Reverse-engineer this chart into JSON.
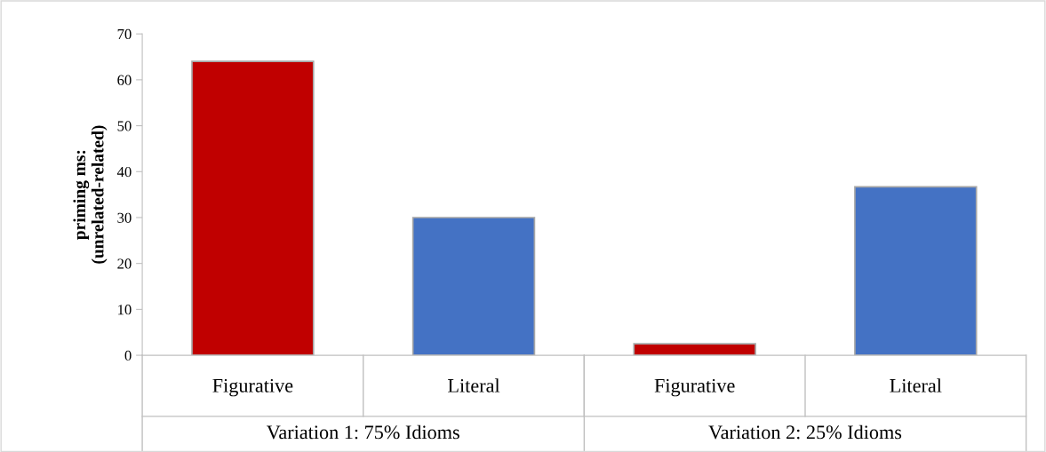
{
  "chart_data": {
    "type": "bar",
    "categories": [
      "Figurative",
      "Literal",
      "Figurative",
      "Literal"
    ],
    "values": [
      64,
      30,
      2.5,
      36.7
    ],
    "colors": [
      "#c00000",
      "#4472c4",
      "#c00000",
      "#4472c4"
    ],
    "ylabel": "priming ms:\n(unrelated-related)",
    "ylim": [
      0,
      70
    ],
    "yticks": [
      0,
      10,
      20,
      30,
      40,
      50,
      60,
      70
    ],
    "annotations": [
      "Variation 1: 75% Idioms",
      "Variation 2: 25% Idioms"
    ],
    "grid": false,
    "legend": false
  }
}
